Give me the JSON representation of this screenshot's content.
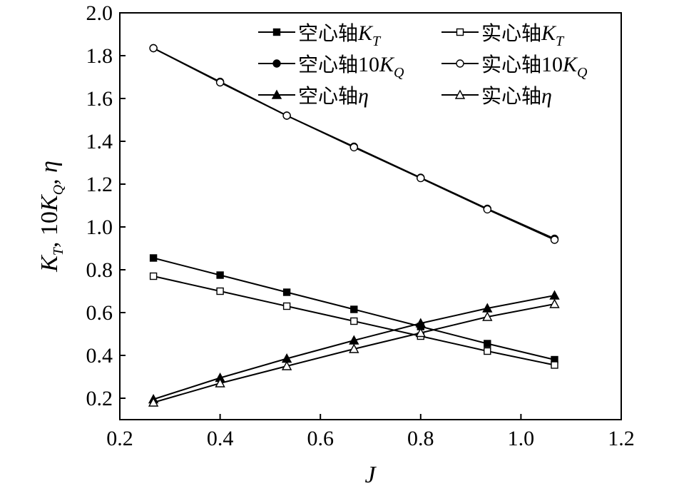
{
  "chart_data": {
    "type": "line",
    "xlabel": "J",
    "ylabel_parts": {
      "k": "K",
      "t": "T",
      "mid": ", 10",
      "k2": "K",
      "q": "Q",
      "end": ", η"
    },
    "xlim": [
      0.2,
      1.2
    ],
    "ylim": [
      0.1,
      2.0
    ],
    "x_ticks": [
      "0.2",
      "0.4",
      "0.6",
      "0.8",
      "1.0",
      "1.2"
    ],
    "y_ticks": [
      "0.2",
      "0.4",
      "0.6",
      "0.8",
      "1.0",
      "1.2",
      "1.4",
      "1.6",
      "1.8",
      "2.0"
    ],
    "grid": false,
    "legend_position": "top-right",
    "x": [
      0.267,
      0.4,
      0.533,
      0.667,
      0.8,
      0.933,
      1.067
    ],
    "series": [
      {
        "name": "空心轴K_T",
        "label_main": "空心轴",
        "label_num": "",
        "label_sym": "K",
        "label_sub": "T",
        "marker": "square",
        "fill": "filled",
        "values": [
          0.855,
          0.775,
          0.695,
          0.615,
          0.535,
          0.455,
          0.38
        ]
      },
      {
        "name": "实心轴K_T",
        "label_main": "实心轴",
        "label_num": "",
        "label_sym": "K",
        "label_sub": "T",
        "marker": "square",
        "fill": "open",
        "values": [
          0.77,
          0.7,
          0.63,
          0.56,
          0.49,
          0.42,
          0.355
        ]
      },
      {
        "name": "空心轴10K_Q",
        "label_main": "空心轴",
        "label_num": "10",
        "label_sym": "K",
        "label_sub": "Q",
        "marker": "circle",
        "fill": "filled",
        "values": [
          1.835,
          1.678,
          1.52,
          1.375,
          1.23,
          1.085,
          0.945
        ]
      },
      {
        "name": "实心轴10K_Q",
        "label_main": "实心轴",
        "label_num": "10",
        "label_sym": "K",
        "label_sub": "Q",
        "marker": "circle",
        "fill": "open",
        "values": [
          1.835,
          1.675,
          1.52,
          1.372,
          1.228,
          1.082,
          0.94
        ]
      },
      {
        "name": "空心轴η",
        "label_main": "空心轴",
        "label_num": "",
        "label_sym": "η",
        "label_sub": "",
        "marker": "triangle",
        "fill": "filled",
        "values": [
          0.195,
          0.295,
          0.385,
          0.47,
          0.55,
          0.62,
          0.68
        ]
      },
      {
        "name": "实心轴η",
        "label_main": "实心轴",
        "label_num": "",
        "label_sym": "η",
        "label_sub": "",
        "marker": "triangle",
        "fill": "open",
        "values": [
          0.18,
          0.27,
          0.35,
          0.43,
          0.505,
          0.58,
          0.64
        ]
      }
    ]
  }
}
